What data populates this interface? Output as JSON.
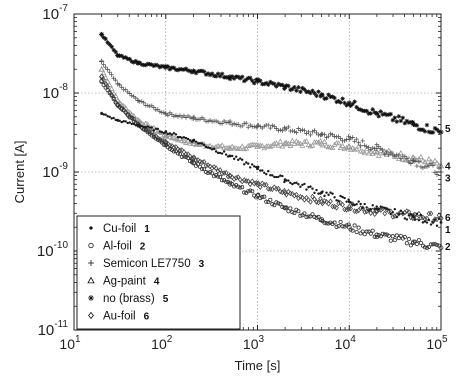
{
  "chart_data": {
    "type": "scatter",
    "title": "",
    "xlabel": "Time [s]",
    "ylabel": "Current [A]",
    "x_scale": "log",
    "y_scale": "log",
    "xlim": [
      10,
      100000
    ],
    "ylim": [
      1e-11,
      1e-07
    ],
    "x_ticks": [
      {
        "base": "10",
        "exp": "1"
      },
      {
        "base": "10",
        "exp": "2"
      },
      {
        "base": "10",
        "exp": "3"
      },
      {
        "base": "10",
        "exp": "4"
      },
      {
        "base": "10",
        "exp": "5"
      }
    ],
    "y_ticks": [
      {
        "base": "10",
        "exp": "-11"
      },
      {
        "base": "10",
        "exp": "-10"
      },
      {
        "base": "10",
        "exp": "-9"
      },
      {
        "base": "10",
        "exp": "-8"
      },
      {
        "base": "10",
        "exp": "-7"
      }
    ],
    "grid": true,
    "legend_position": "bottom-left",
    "series": [
      {
        "name": "Cu-foil",
        "number": "1",
        "marker": "filled-circle",
        "color": "#1a1a1a",
        "x": [
          20,
          30,
          50,
          100,
          200,
          500,
          1000,
          2000,
          5000,
          10000,
          20000,
          50000,
          100000
        ],
        "y": [
          5.5e-09,
          4.5e-09,
          3.9e-09,
          3.2e-09,
          2.5e-09,
          1.6e-09,
          1.1e-09,
          8e-10,
          5.5e-10,
          4.2e-10,
          3.4e-10,
          2.7e-10,
          2.3e-10
        ]
      },
      {
        "name": "Al-foil",
        "number": "2",
        "marker": "open-circle",
        "color": "#333333",
        "x": [
          20,
          30,
          50,
          100,
          200,
          500,
          1000,
          2000,
          5000,
          10000,
          20000,
          50000,
          100000
        ],
        "y": [
          1.4e-08,
          7e-09,
          4e-09,
          2.2e-09,
          1.3e-09,
          7e-10,
          5e-10,
          3.5e-10,
          2.5e-10,
          2e-10,
          1.6e-10,
          1.3e-10,
          1.1e-10
        ]
      },
      {
        "name": "Semicon LE7750",
        "number": "3",
        "marker": "plus",
        "color": "#555555",
        "x": [
          20,
          30,
          50,
          100,
          200,
          500,
          1000,
          2000,
          5000,
          10000,
          20000,
          50000,
          100000
        ],
        "y": [
          2.5e-08,
          1.3e-08,
          8e-09,
          5.5e-09,
          4.8e-09,
          4.2e-09,
          3.8e-09,
          3.5e-09,
          3e-09,
          2.6e-09,
          2e-09,
          1.4e-09,
          1e-09
        ]
      },
      {
        "name": "Ag-paint",
        "number": "4",
        "marker": "open-triangle",
        "color": "#9a9a9a",
        "x": [
          20,
          30,
          50,
          100,
          200,
          500,
          1000,
          2000,
          5000,
          10000,
          20000,
          50000,
          100000
        ],
        "y": [
          2e-08,
          8e-09,
          4.5e-09,
          2.9e-09,
          2.3e-09,
          2e-09,
          2.1e-09,
          2.3e-09,
          2.3e-09,
          2.1e-09,
          1.8e-09,
          1.5e-09,
          1.2e-09
        ]
      },
      {
        "name": "no (brass)",
        "number": "5",
        "marker": "asterisk",
        "color": "#111111",
        "x": [
          20,
          30,
          50,
          100,
          200,
          500,
          1000,
          2000,
          5000,
          10000,
          20000,
          50000,
          100000
        ],
        "y": [
          5.5e-08,
          3e-08,
          2.4e-08,
          2.1e-08,
          1.9e-08,
          1.6e-08,
          1.4e-08,
          1.2e-08,
          9.5e-09,
          7.5e-09,
          5.5e-09,
          4e-09,
          3.2e-09
        ]
      },
      {
        "name": "Au-foil",
        "number": "6",
        "marker": "open-diamond",
        "color": "#444444",
        "x": [
          20,
          30,
          50,
          100,
          200,
          500,
          1000,
          2000,
          5000,
          10000,
          20000,
          50000,
          100000
        ],
        "y": [
          1.6e-08,
          7e-09,
          4e-09,
          2.4e-09,
          1.5e-09,
          9e-10,
          7e-10,
          5.5e-10,
          4.2e-10,
          3.6e-10,
          3.2e-10,
          2.8e-10,
          2.6e-10
        ]
      }
    ],
    "side_labels": [
      "5",
      "4",
      "3",
      "6",
      "1",
      "2"
    ]
  }
}
